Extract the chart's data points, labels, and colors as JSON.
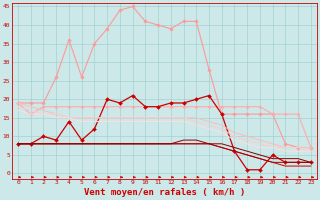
{
  "x": [
    0,
    1,
    2,
    3,
    4,
    5,
    6,
    7,
    8,
    9,
    10,
    11,
    12,
    13,
    14,
    15,
    16,
    17,
    18,
    19,
    20,
    21,
    22,
    23
  ],
  "series": [
    {
      "name": "light_pink_upper",
      "color": "#ff9999",
      "linewidth": 0.8,
      "marker": "D",
      "markersize": 1.8,
      "y": [
        19,
        19,
        19,
        26,
        36,
        26,
        35,
        39,
        44,
        45,
        41,
        40,
        39,
        41,
        41,
        28,
        16,
        16,
        16,
        16,
        16,
        8,
        7,
        7
      ]
    },
    {
      "name": "pink_flat",
      "color": "#ffaaaa",
      "linewidth": 0.8,
      "marker": "D",
      "markersize": 1.6,
      "y": [
        19,
        16,
        18,
        18,
        18,
        18,
        18,
        18,
        18,
        18,
        18,
        18,
        18,
        18,
        18,
        18,
        18,
        18,
        18,
        18,
        16,
        16,
        16,
        7
      ]
    },
    {
      "name": "red_main",
      "color": "#cc0000",
      "linewidth": 0.9,
      "marker": "D",
      "markersize": 2.0,
      "y": [
        8,
        8,
        10,
        9,
        14,
        9,
        12,
        20,
        19,
        21,
        18,
        18,
        19,
        19,
        20,
        21,
        16,
        6,
        1,
        1,
        5,
        3,
        3,
        3
      ]
    },
    {
      "name": "dark_diagonal1",
      "color": "#cc0000",
      "linewidth": 0.7,
      "marker": null,
      "y": [
        8,
        8,
        8,
        8,
        8,
        8,
        8,
        8,
        8,
        8,
        8,
        8,
        8,
        8,
        8,
        8,
        7,
        6,
        5,
        4,
        3,
        2,
        2,
        2
      ]
    },
    {
      "name": "dark_diagonal2",
      "color": "#aa0000",
      "linewidth": 0.7,
      "marker": null,
      "y": [
        8,
        8,
        8,
        8,
        8,
        8,
        8,
        8,
        8,
        8,
        8,
        8,
        8,
        8,
        8,
        8,
        7,
        6,
        5,
        4,
        3,
        3,
        3,
        3
      ]
    },
    {
      "name": "dark_diagonal3",
      "color": "#880000",
      "linewidth": 0.7,
      "marker": null,
      "y": [
        8,
        8,
        8,
        8,
        8,
        8,
        8,
        8,
        8,
        8,
        8,
        8,
        8,
        9,
        9,
        8,
        8,
        7,
        6,
        5,
        4,
        4,
        4,
        3
      ]
    },
    {
      "name": "pink_diag1",
      "color": "#ffbbbb",
      "linewidth": 0.7,
      "marker": null,
      "y": [
        19,
        18,
        17,
        16,
        15,
        15,
        15,
        15,
        15,
        15,
        15,
        15,
        15,
        15,
        15,
        14,
        13,
        11,
        10,
        9,
        8,
        7,
        7,
        7
      ]
    },
    {
      "name": "pink_diag2",
      "color": "#ffcccc",
      "linewidth": 0.7,
      "marker": null,
      "y": [
        18,
        17,
        16,
        16,
        15,
        15,
        15,
        15,
        15,
        15,
        15,
        15,
        15,
        15,
        14,
        13,
        12,
        10,
        9,
        8,
        7,
        7,
        7,
        6
      ]
    },
    {
      "name": "pink_diag3",
      "color": "#ffdddd",
      "linewidth": 0.7,
      "marker": null,
      "y": [
        17,
        16,
        16,
        15,
        15,
        14,
        14,
        14,
        14,
        14,
        14,
        14,
        14,
        14,
        13,
        12,
        11,
        9,
        8,
        7,
        7,
        6,
        6,
        6
      ]
    }
  ],
  "xlabel": "Vent moyen/en rafales ( km/h )",
  "xlim_lo": -0.5,
  "xlim_hi": 23.5,
  "ylim_lo": -1.5,
  "ylim_hi": 46,
  "yticks": [
    0,
    5,
    10,
    15,
    20,
    25,
    30,
    35,
    40,
    45
  ],
  "xticks": [
    0,
    1,
    2,
    3,
    4,
    5,
    6,
    7,
    8,
    9,
    10,
    11,
    12,
    13,
    14,
    15,
    16,
    17,
    18,
    19,
    20,
    21,
    22,
    23
  ],
  "bg_color": "#cce8e8",
  "grid_color": "#99cccc",
  "text_color": "#cc0000",
  "arrow_color": "#cc0000",
  "xlabel_fontsize": 6.5,
  "tick_fontsize": 4.5
}
